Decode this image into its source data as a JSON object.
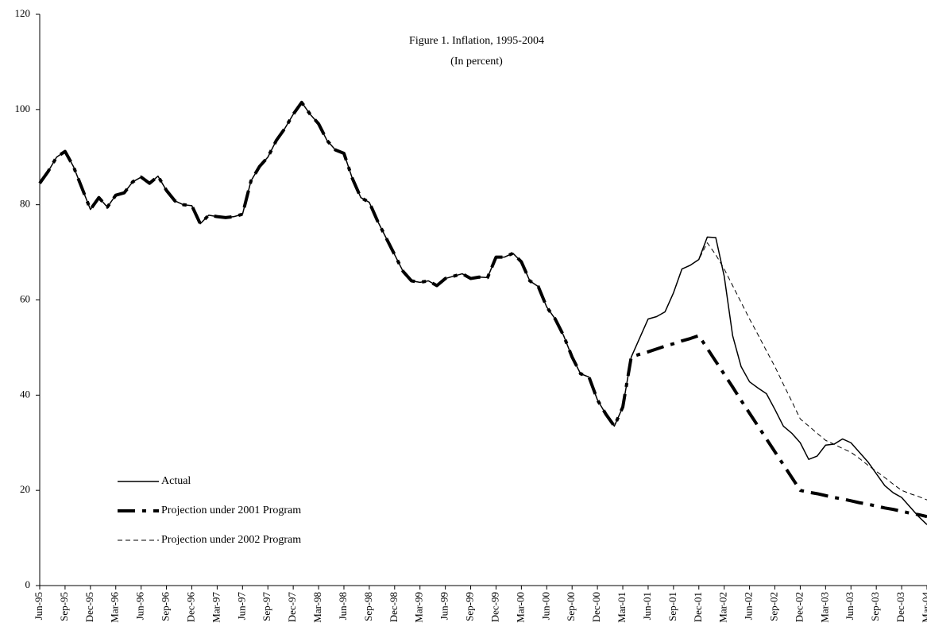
{
  "chart_data": {
    "type": "line",
    "title": "Figure 1. Inflation, 1995-2004",
    "subtitle": "(In percent)",
    "categories": [
      "Jun-95",
      null,
      null,
      "Sep-95",
      null,
      null,
      "Dec-95",
      null,
      null,
      "Mar-96",
      null,
      null,
      "Jun-96",
      null,
      null,
      "Sep-96",
      null,
      null,
      "Dec-96",
      null,
      null,
      "Mar-97",
      null,
      null,
      "Jun-97",
      null,
      null,
      "Sep-97",
      null,
      null,
      "Dec-97",
      null,
      null,
      "Mar-98",
      null,
      null,
      "Jun-98",
      null,
      null,
      "Sep-98",
      null,
      null,
      "Dec-98",
      null,
      null,
      "Mar-99",
      null,
      null,
      "Jun-99",
      null,
      null,
      "Sep-99",
      null,
      null,
      "Dec-99",
      null,
      null,
      "Mar-00",
      null,
      null,
      "Jun-00",
      null,
      null,
      "Sep-00",
      null,
      null,
      "Dec-00",
      null,
      null,
      "Mar-01",
      null,
      null,
      "Jun-01",
      null,
      null,
      "Sep-01",
      null,
      null,
      "Dec-01",
      null,
      null,
      "Mar-02",
      null,
      null,
      "Jun-02",
      null,
      null,
      "Sep-02",
      null,
      null,
      "Dec-02",
      null,
      null,
      "Mar-03",
      null,
      null,
      "Jun-03",
      null,
      null,
      "Sep-03",
      null,
      null,
      "Dec-03",
      null,
      null,
      "Mar-04"
    ],
    "series": [
      {
        "name": "Projection under 2001 Program",
        "color": "#000000",
        "style": "dash-dot",
        "values": [
          84.5,
          87,
          90,
          91.2,
          88,
          83.5,
          79,
          81.5,
          79.5,
          82,
          82.5,
          84.8,
          85.8,
          84.5,
          86,
          83,
          80.8,
          80,
          79.8,
          76,
          77.8,
          77.5,
          77.3,
          77.5,
          78,
          85,
          88,
          90,
          93.5,
          96,
          99,
          101.5,
          99,
          97,
          93.5,
          91.5,
          90.8,
          85.5,
          81.5,
          80.5,
          76.5,
          73,
          69.5,
          66,
          64,
          63.7,
          64,
          63,
          64.5,
          65,
          65.5,
          64.5,
          64.8,
          64.7,
          69,
          69,
          69.8,
          68,
          64,
          62.8,
          58.5,
          56,
          52.5,
          48,
          44.5,
          43.8,
          39,
          36,
          33.5,
          37.5,
          48,
          48.6,
          49.1,
          49.7,
          50.3,
          50.8,
          51.4,
          51.9,
          52.5,
          49.8,
          47.1,
          44.4,
          41.7,
          38.9,
          36.2,
          33.5,
          30.8,
          28.1,
          25.4,
          22.7,
          20,
          19.6,
          19.3,
          18.9,
          18.5,
          18.2,
          17.8,
          17.4,
          17.1,
          16.7,
          16.3,
          16,
          15.6,
          15.2,
          14.9,
          14.5
        ]
      },
      {
        "name": "Projection under 2002 Program",
        "color": "#000000",
        "style": "dashed",
        "values": [
          84.5,
          87,
          90,
          91.2,
          88,
          83.5,
          79,
          81.5,
          79.5,
          82,
          82.5,
          84.8,
          85.8,
          84.5,
          86,
          83,
          80.8,
          80,
          79.8,
          76,
          77.8,
          77.5,
          77.3,
          77.5,
          78,
          85,
          88,
          90,
          93.5,
          96,
          99,
          101.5,
          99,
          97,
          93.5,
          91.5,
          90.8,
          85.5,
          81.5,
          80.5,
          76.5,
          73,
          69.5,
          66,
          64,
          63.7,
          64,
          63,
          64.5,
          65,
          65.5,
          64.5,
          64.8,
          64.7,
          69,
          69,
          69.8,
          68,
          64,
          62.8,
          58.5,
          56,
          52.5,
          48,
          44.5,
          43.8,
          39,
          36,
          33.5,
          37.5,
          48,
          52,
          56,
          56.5,
          57.5,
          61.5,
          66.5,
          67.3,
          68.5,
          72,
          69.5,
          66.5,
          63,
          59.5,
          56,
          52.7,
          49.3,
          46,
          42.3,
          38.7,
          35,
          33.5,
          32,
          30.5,
          29.7,
          28.8,
          28,
          26.7,
          25.3,
          24,
          22.7,
          21.3,
          20,
          19.3,
          18.7,
          18
        ]
      },
      {
        "name": "Actual",
        "color": "#000000",
        "style": "solid",
        "values": [
          84.5,
          87,
          90,
          91.2,
          88,
          83.5,
          79,
          81.5,
          79.5,
          82,
          82.5,
          84.8,
          85.8,
          84.5,
          86,
          83,
          80.8,
          80,
          79.8,
          76,
          77.8,
          77.5,
          77.3,
          77.5,
          78,
          85,
          88,
          90,
          93.5,
          96,
          99,
          101.5,
          99,
          97,
          93.5,
          91.5,
          90.8,
          85.5,
          81.5,
          80.5,
          76.5,
          73,
          69.5,
          66,
          64,
          63.7,
          64,
          63,
          64.5,
          65,
          65.5,
          64.5,
          64.8,
          64.7,
          69,
          69,
          69.8,
          68,
          64,
          62.8,
          58.5,
          56,
          52.5,
          48,
          44.5,
          43.8,
          39,
          36,
          33.5,
          37.5,
          48,
          52,
          56,
          56.5,
          57.5,
          61.5,
          66.5,
          67.3,
          68.5,
          73.2,
          73.1,
          65,
          52.5,
          46,
          42.8,
          41.5,
          40.3,
          37,
          33.5,
          32,
          30,
          26.5,
          27.2,
          29.5,
          29.7,
          30.8,
          30,
          28,
          26,
          23.5,
          21,
          19.5,
          18.5,
          16.5,
          14.5,
          12.8
        ]
      }
    ],
    "legend_order": [
      2,
      0,
      1
    ],
    "legend": "lower left",
    "ylim": [
      0,
      120
    ],
    "yticks": [
      0,
      20,
      40,
      60,
      80,
      100,
      120
    ],
    "grid": false
  }
}
